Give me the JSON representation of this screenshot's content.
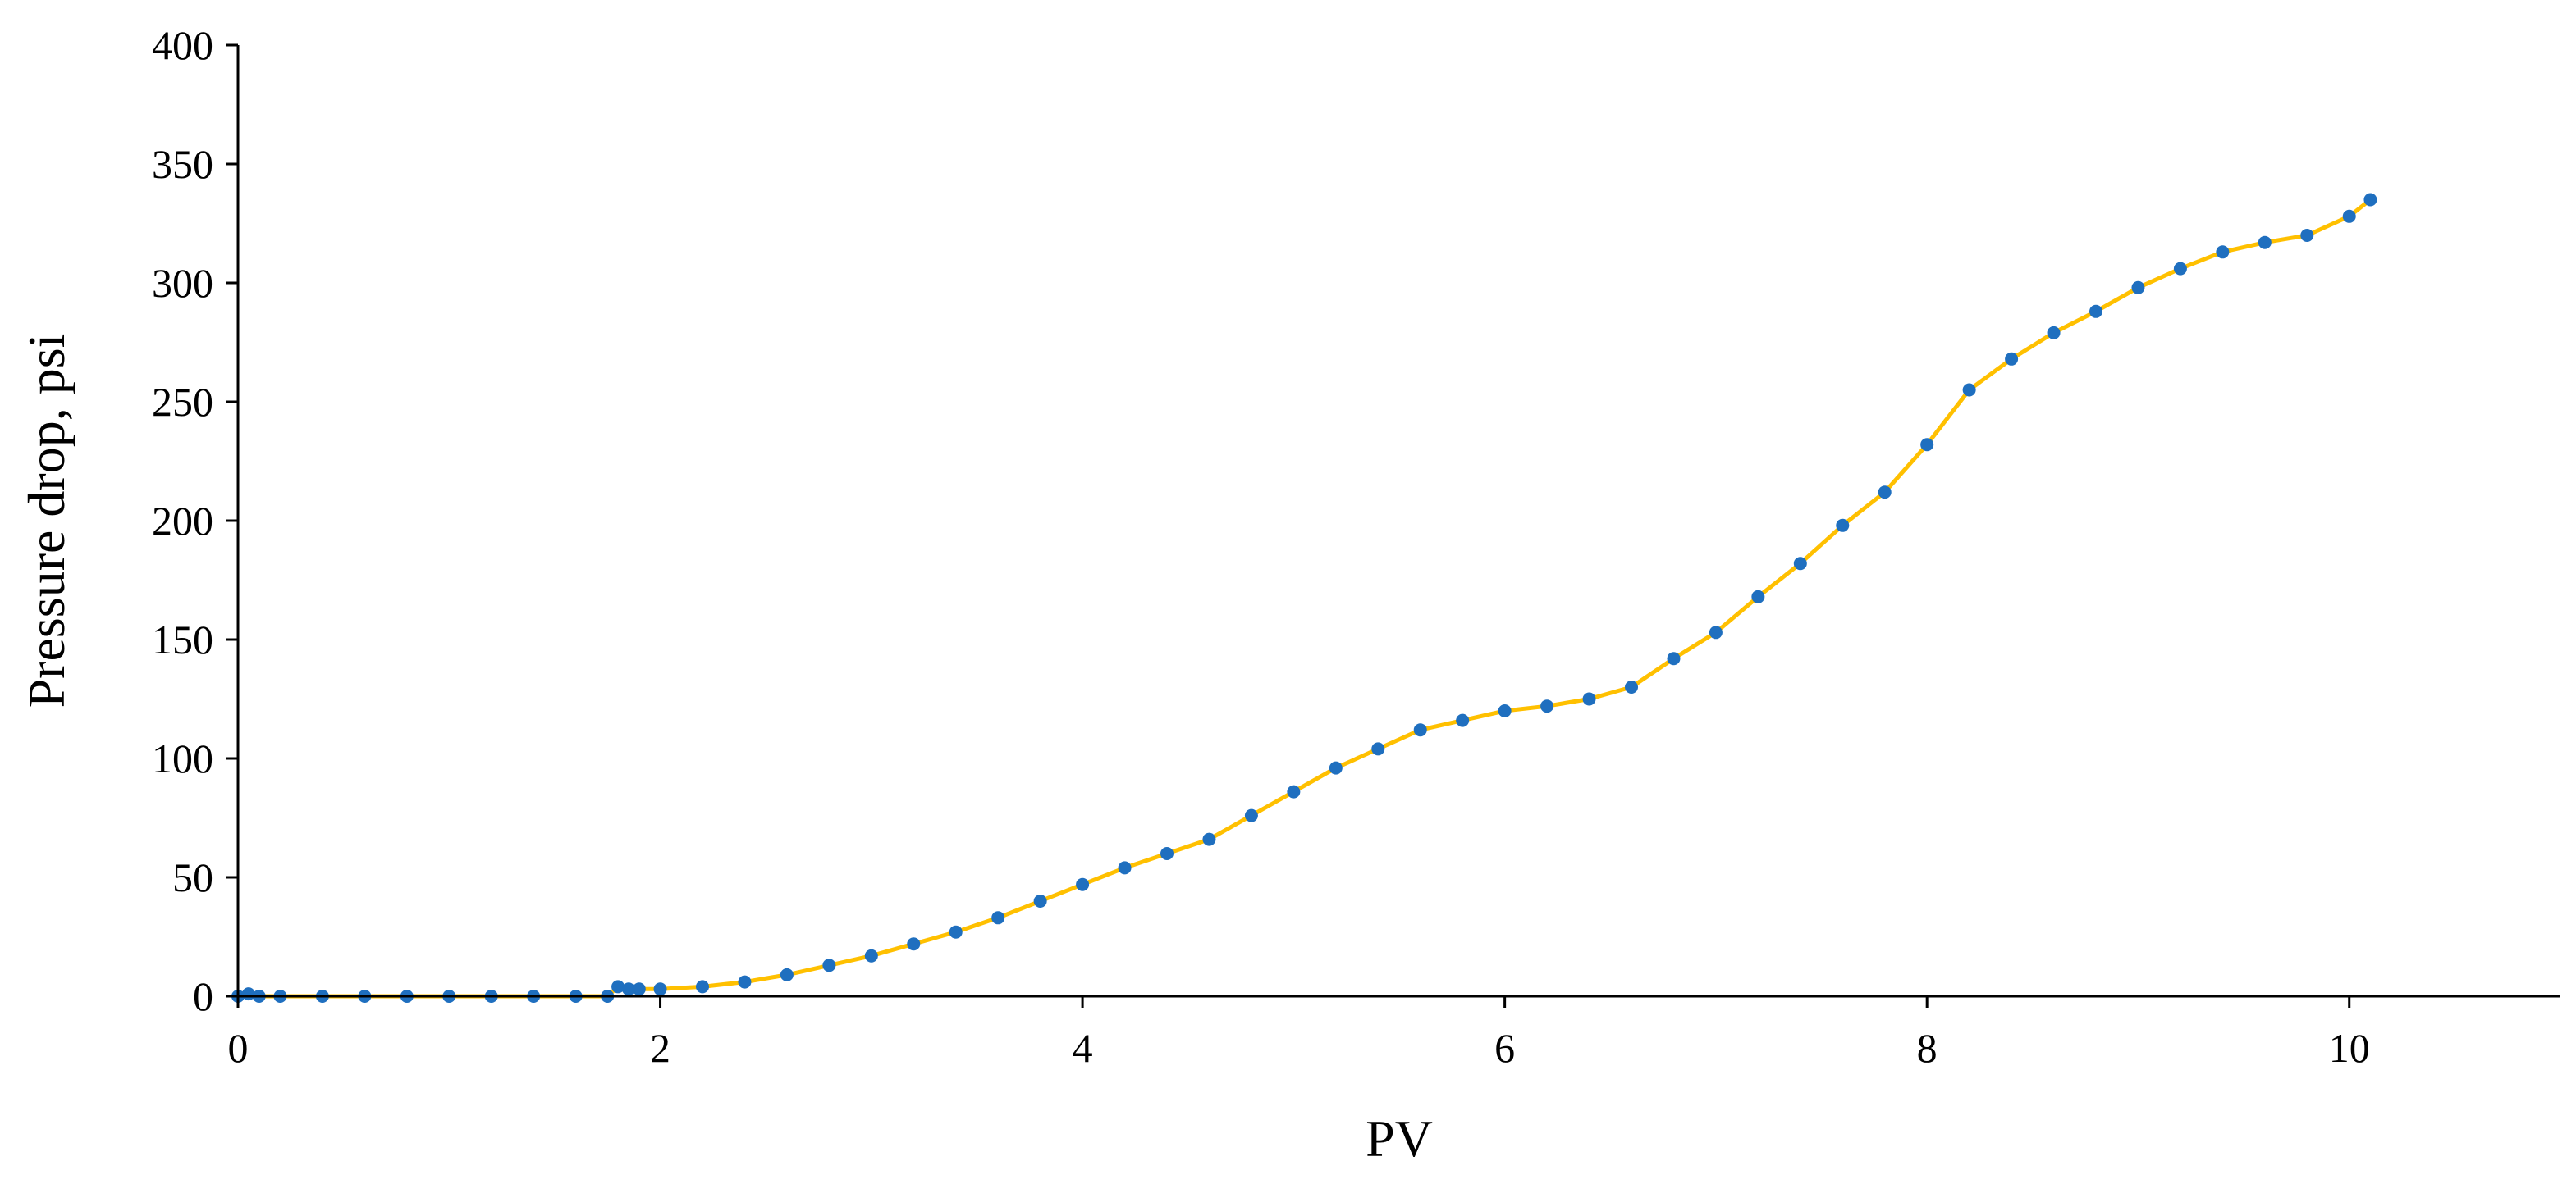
{
  "chart_data": {
    "type": "scatter",
    "title": "",
    "xlabel": "PV",
    "ylabel": "Pressure drop, psi",
    "xlim": [
      0,
      11
    ],
    "ylim": [
      0,
      400
    ],
    "x_ticks": [
      0,
      2,
      4,
      6,
      8,
      10
    ],
    "x_tick_labels": [
      "0",
      "2",
      "4",
      "6",
      "8",
      "10"
    ],
    "y_ticks": [
      0,
      50,
      100,
      150,
      200,
      250,
      300,
      350,
      400
    ],
    "y_tick_labels": [
      "0",
      "50",
      "100",
      "150",
      "200",
      "250",
      "300",
      "350",
      "400"
    ],
    "grid": false,
    "legend": "none",
    "colors": {
      "markers": "#1f6fbf",
      "line": "#ffc000"
    },
    "series": [
      {
        "style": "line+markers",
        "x": [
          0.0,
          0.05,
          0.1,
          0.2,
          0.4,
          0.6,
          0.8,
          1.0,
          1.2,
          1.4,
          1.6,
          1.75,
          1.8,
          1.85,
          1.9,
          2.0,
          2.2,
          2.4,
          2.6,
          2.8,
          3.0,
          3.2,
          3.4,
          3.6,
          3.8,
          4.0,
          4.2,
          4.4,
          4.6,
          4.8,
          5.0,
          5.2,
          5.4,
          5.6,
          5.8,
          6.0,
          6.2,
          6.4,
          6.6,
          6.8,
          7.0,
          7.2,
          7.4,
          7.6,
          7.8,
          8.0,
          8.2,
          8.4,
          8.6,
          8.8,
          9.0,
          9.2,
          9.4,
          9.6,
          9.8,
          10.0,
          10.1
        ],
        "y": [
          0,
          1,
          0,
          0,
          0,
          0,
          0,
          0,
          0,
          0,
          0,
          0,
          4,
          3,
          3,
          3,
          4,
          6,
          9,
          13,
          17,
          22,
          27,
          33,
          40,
          47,
          54,
          60,
          66,
          76,
          86,
          96,
          104,
          112,
          116,
          120,
          122,
          125,
          130,
          142,
          153,
          168,
          182,
          198,
          212,
          232,
          255,
          268,
          279,
          288,
          298,
          306,
          313,
          317,
          320,
          328,
          335
        ]
      }
    ]
  }
}
